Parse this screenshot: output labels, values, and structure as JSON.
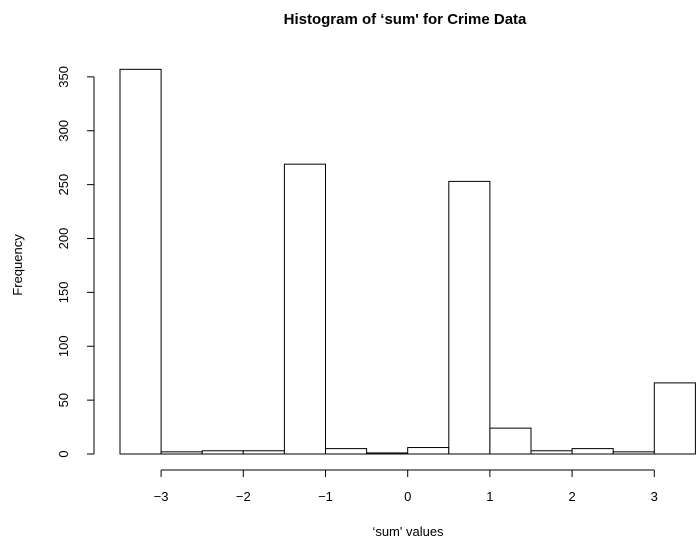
{
  "chart_data": {
    "type": "bar",
    "title": "Histogram of ‘sum' for Crime Data",
    "xlabel": "‘sum' values",
    "ylabel": "Frequency",
    "bins": [
      {
        "x0": -3.5,
        "x1": -3.0,
        "count": 357
      },
      {
        "x0": -3.0,
        "x1": -2.5,
        "count": 2
      },
      {
        "x0": -2.5,
        "x1": -2.0,
        "count": 3
      },
      {
        "x0": -2.0,
        "x1": -1.5,
        "count": 3
      },
      {
        "x0": -1.5,
        "x1": -1.0,
        "count": 269
      },
      {
        "x0": -1.0,
        "x1": -0.5,
        "count": 5
      },
      {
        "x0": -0.5,
        "x1": 0.0,
        "count": 1
      },
      {
        "x0": 0.0,
        "x1": 0.5,
        "count": 6
      },
      {
        "x0": 0.5,
        "x1": 1.0,
        "count": 253
      },
      {
        "x0": 1.0,
        "x1": 1.5,
        "count": 24
      },
      {
        "x0": 1.5,
        "x1": 2.0,
        "count": 3
      },
      {
        "x0": 2.0,
        "x1": 2.5,
        "count": 5
      },
      {
        "x0": 2.5,
        "x1": 3.0,
        "count": 2
      },
      {
        "x0": 3.0,
        "x1": 3.5,
        "count": 66
      }
    ],
    "xticks": [
      -3,
      -2,
      -1,
      0,
      1,
      2,
      3
    ],
    "xtick_labels": [
      "−3",
      "−2",
      "−1",
      "0",
      "1",
      "2",
      "3"
    ],
    "yticks": [
      0,
      50,
      100,
      150,
      200,
      250,
      300,
      350
    ],
    "ytick_labels": [
      "0",
      "50",
      "100",
      "150",
      "200",
      "250",
      "300",
      "350"
    ],
    "xlim": [
      -3.5,
      3.5
    ],
    "ylim": [
      0,
      357
    ],
    "grid": false,
    "colors": {
      "bar_fill": "#ffffff",
      "bar_stroke": "#000000"
    }
  }
}
